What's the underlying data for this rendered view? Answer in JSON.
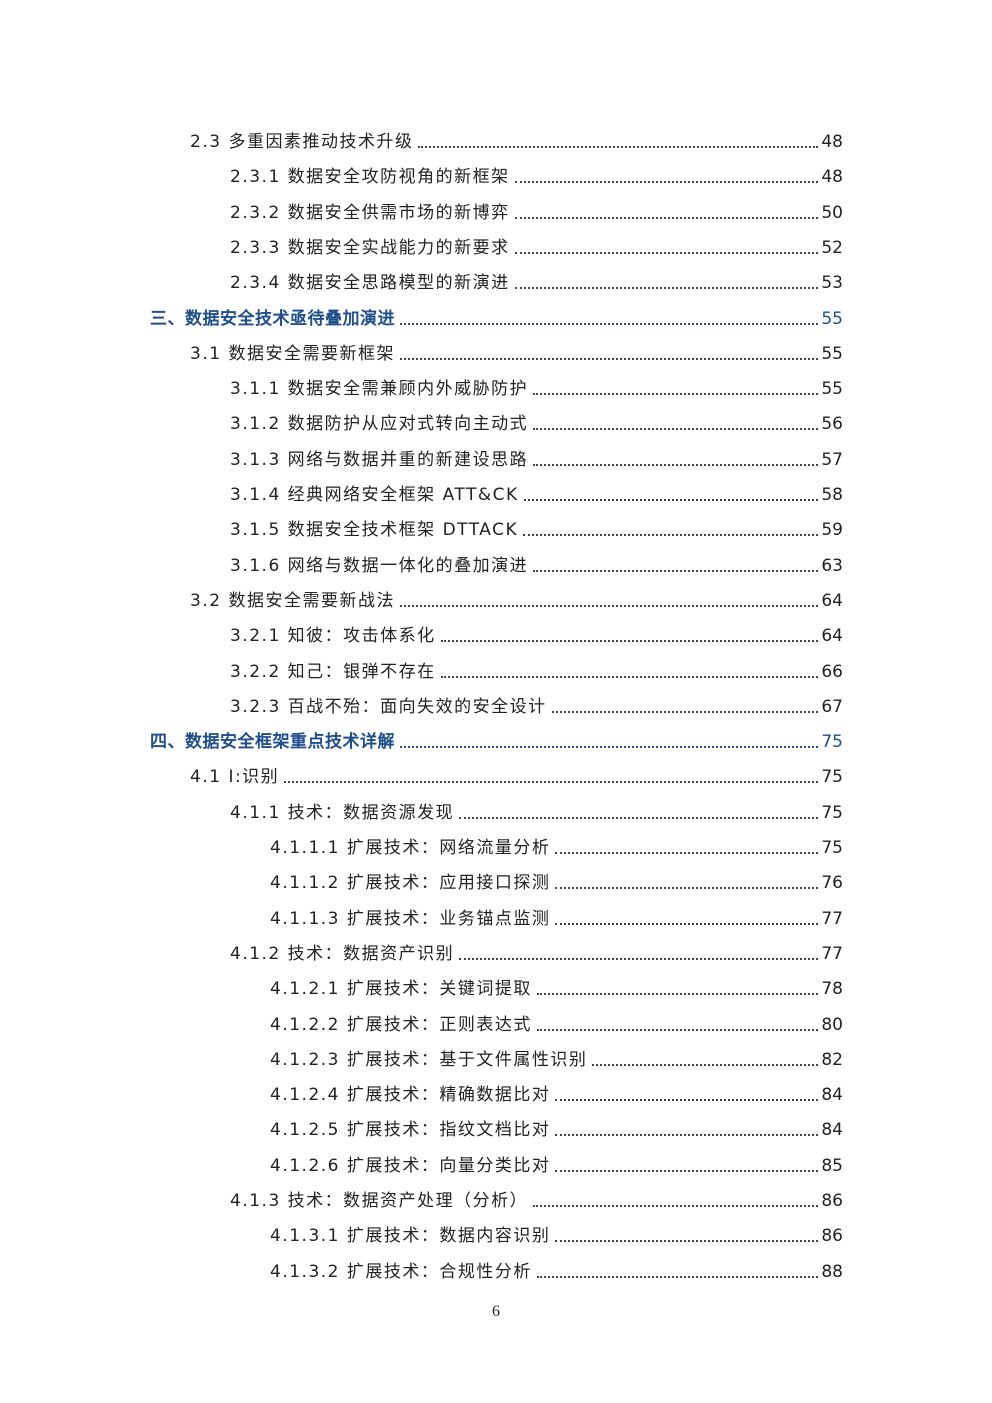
{
  "toc": [
    {
      "level": 2,
      "label": "2.3 多重因素推动技术升级",
      "page": "48"
    },
    {
      "level": 3,
      "label": "2.3.1 数据安全攻防视角的新框架",
      "page": "48"
    },
    {
      "level": 3,
      "label": "2.3.2 数据安全供需市场的新博弈",
      "page": "50"
    },
    {
      "level": 3,
      "label": "2.3.3 数据安全实战能力的新要求",
      "page": "52"
    },
    {
      "level": 3,
      "label": "2.3.4 数据安全思路模型的新演进",
      "page": "53"
    },
    {
      "level": 1,
      "label": "三、数据安全技术亟待叠加演进",
      "page": "55"
    },
    {
      "level": 2,
      "label": "3.1 数据安全需要新框架",
      "page": "55"
    },
    {
      "level": 3,
      "label": "3.1.1 数据安全需兼顾内外威胁防护",
      "page": "55"
    },
    {
      "level": 3,
      "label": "3.1.2 数据防护从应对式转向主动式",
      "page": "56"
    },
    {
      "level": 3,
      "label": "3.1.3 网络与数据并重的新建设思路",
      "page": "57"
    },
    {
      "level": 3,
      "label": "3.1.4 经典网络安全框架 ATT&CK",
      "page": "58"
    },
    {
      "level": 3,
      "label": "3.1.5 数据安全技术框架 DTTACK",
      "page": "59"
    },
    {
      "level": 3,
      "label": "3.1.6 网络与数据一体化的叠加演进",
      "page": "63"
    },
    {
      "level": 2,
      "label": "3.2 数据安全需要新战法",
      "page": "64"
    },
    {
      "level": 3,
      "label": "3.2.1 知彼：攻击体系化",
      "page": "64"
    },
    {
      "level": 3,
      "label": "3.2.2 知己：银弹不存在",
      "page": "66"
    },
    {
      "level": 3,
      "label": "3.2.3 百战不殆：面向失效的安全设计",
      "page": "67"
    },
    {
      "level": 1,
      "label": "四、数据安全框架重点技术详解",
      "page": "75"
    },
    {
      "level": 2,
      "label": "4.1 I:识别",
      "page": "75"
    },
    {
      "level": 3,
      "label": "4.1.1 技术：数据资源发现",
      "page": "75"
    },
    {
      "level": 4,
      "label": "4.1.1.1 扩展技术：网络流量分析",
      "page": "75"
    },
    {
      "level": 4,
      "label": "4.1.1.2 扩展技术：应用接口探测",
      "page": "76"
    },
    {
      "level": 4,
      "label": "4.1.1.3 扩展技术：业务锚点监测",
      "page": "77"
    },
    {
      "level": 3,
      "label": "4.1.2 技术：数据资产识别",
      "page": "77"
    },
    {
      "level": 4,
      "label": "4.1.2.1 扩展技术：关键词提取",
      "page": "78"
    },
    {
      "level": 4,
      "label": "4.1.2.2 扩展技术：正则表达式",
      "page": "80"
    },
    {
      "level": 4,
      "label": "4.1.2.3 扩展技术：基于文件属性识别",
      "page": "82"
    },
    {
      "level": 4,
      "label": "4.1.2.4 扩展技术：精确数据比对",
      "page": "84"
    },
    {
      "level": 4,
      "label": "4.1.2.5 扩展技术：指纹文档比对",
      "page": "84"
    },
    {
      "level": 4,
      "label": "4.1.2.6 扩展技术：向量分类比对",
      "page": "85"
    },
    {
      "level": 3,
      "label": "4.1.3 技术：数据资产处理（分析）",
      "page": "86"
    },
    {
      "level": 4,
      "label": "4.1.3.1 扩展技术：数据内容识别",
      "page": "86"
    },
    {
      "level": 4,
      "label": "4.1.3.2 扩展技术：合规性分析",
      "page": "88"
    }
  ],
  "footer": {
    "page_number": "6"
  },
  "colors": {
    "heading": "#1f4e8c",
    "text": "#222222"
  }
}
